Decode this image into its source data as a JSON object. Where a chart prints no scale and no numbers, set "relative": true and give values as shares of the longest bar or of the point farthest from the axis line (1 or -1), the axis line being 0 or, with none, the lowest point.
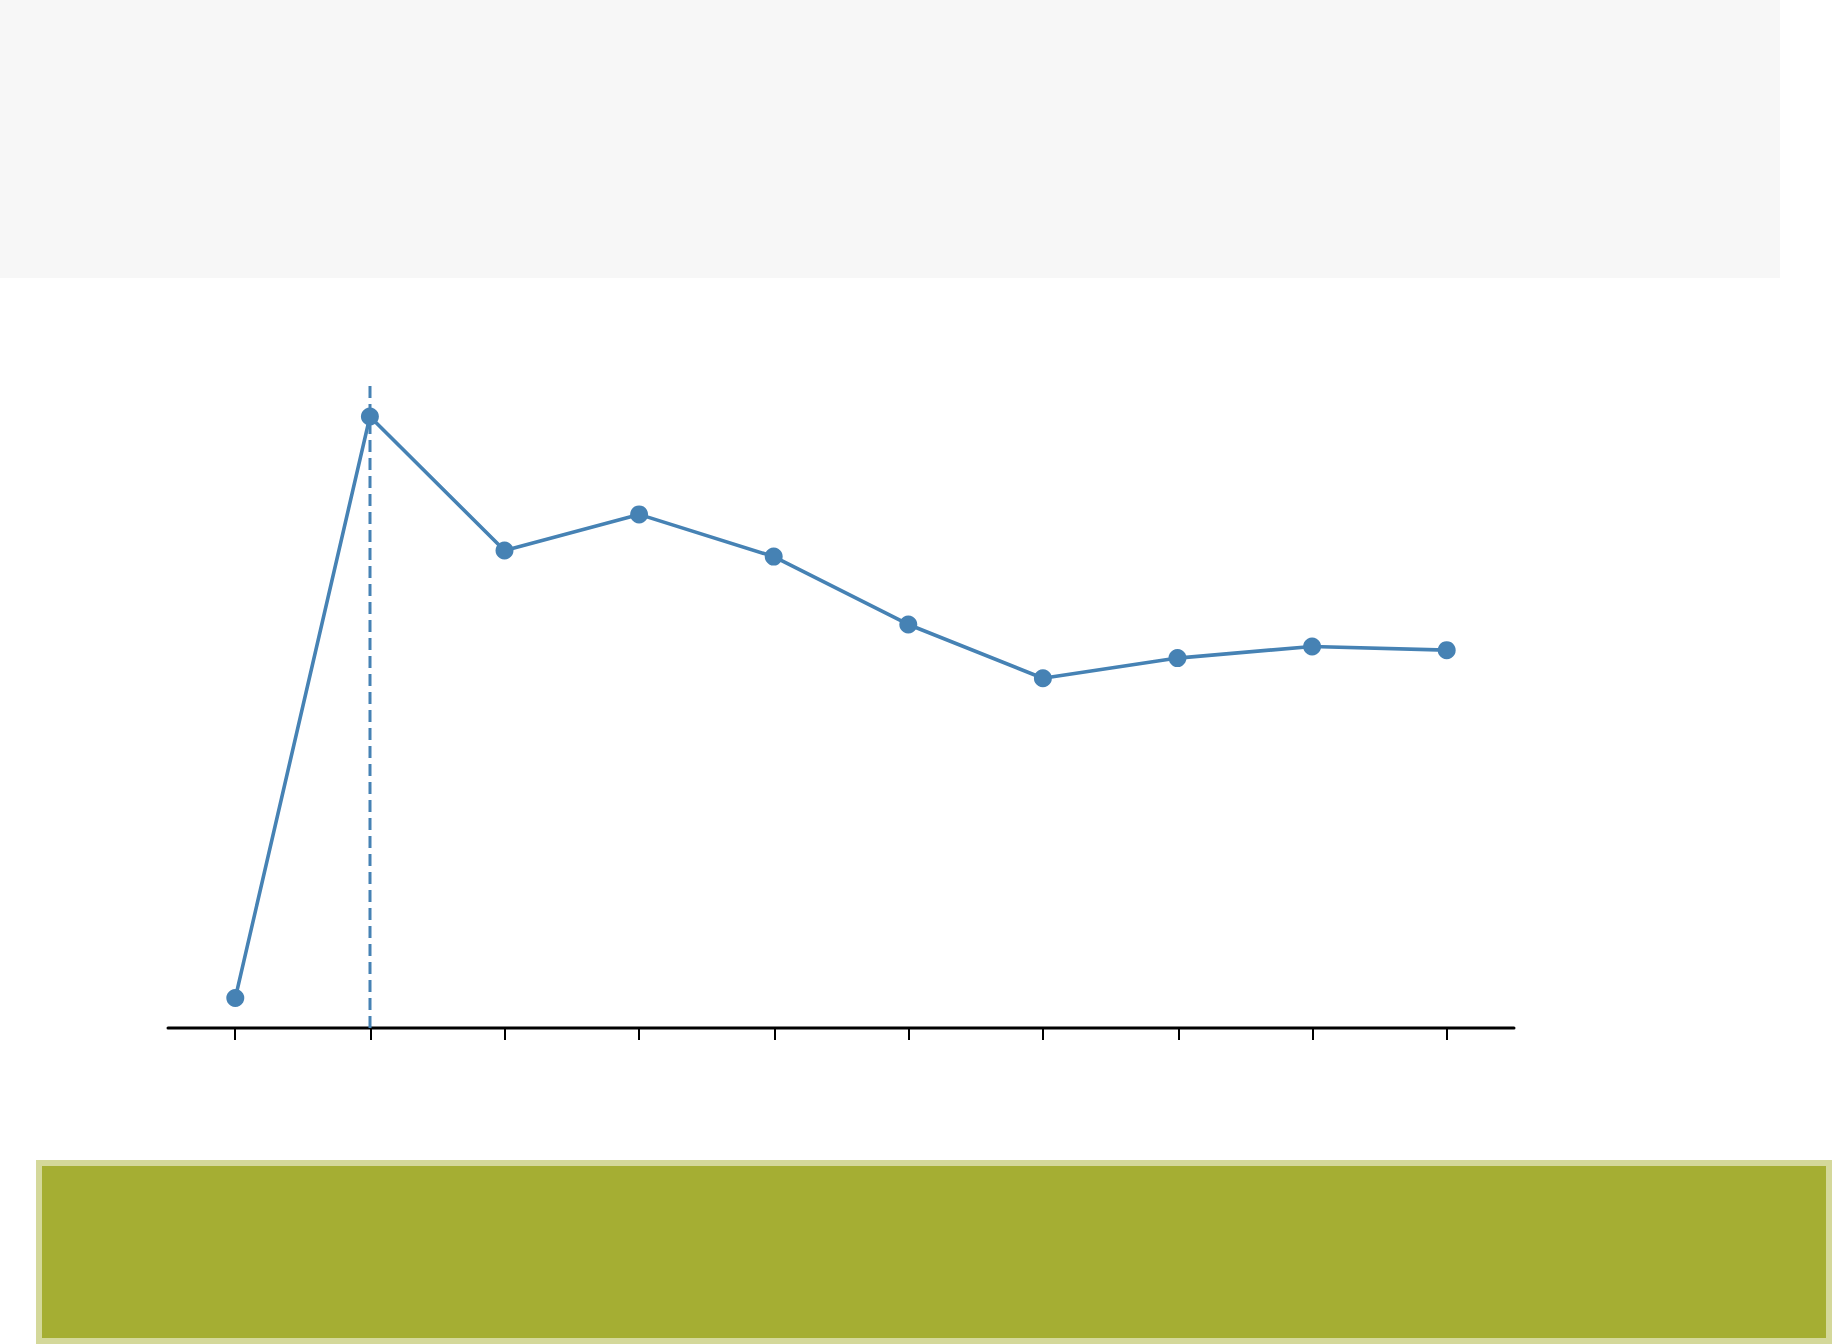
{
  "chart_data": {
    "type": "line",
    "relative": true,
    "categories": [
      null,
      null,
      null,
      null,
      null,
      null,
      null,
      null,
      null,
      null
    ],
    "series": [
      {
        "color": "#4682b4",
        "values": [
          0.049,
          1,
          0.781,
          0.84,
          0.771,
          0.66,
          0.572,
          0.605,
          0.624,
          0.618
        ]
      }
    ],
    "grid": false,
    "marker": "circle",
    "line_style": "solid"
  }
}
